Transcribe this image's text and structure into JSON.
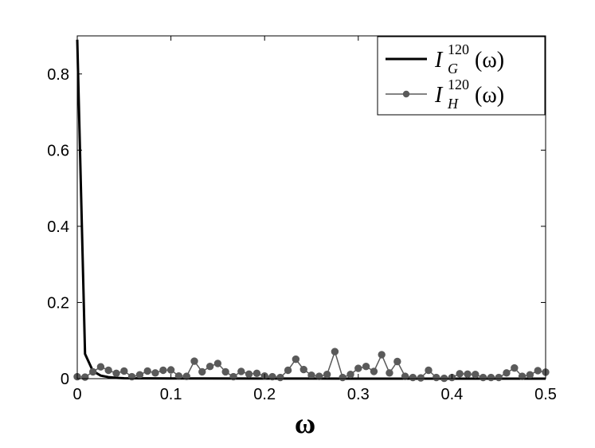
{
  "chart_data": {
    "type": "line",
    "xlabel": "ω",
    "ylabel": "",
    "xlim": [
      0,
      0.5
    ],
    "ylim": [
      0,
      0.9
    ],
    "xticks": [
      "0",
      "0.1",
      "0.2",
      "0.3",
      "0.4",
      "0.5"
    ],
    "yticks": [
      "0",
      "0.2",
      "0.4",
      "0.6",
      "0.8"
    ],
    "grid": false,
    "legend_position": "top-right",
    "series": [
      {
        "name": "I_G^120(ω)",
        "legend": {
          "base": "I",
          "sub": "G",
          "sup": "120",
          "arg": "(ω)"
        },
        "color": "#000000",
        "marker": "none",
        "x": [
          0.0,
          0.0083,
          0.0167,
          0.025,
          0.0333,
          0.0417,
          0.05,
          0.1,
          0.2,
          0.3,
          0.4,
          0.5
        ],
        "y": [
          0.89,
          0.065,
          0.02,
          0.008,
          0.004,
          0.002,
          0.001,
          0.0005,
          0.0002,
          0.0001,
          0.0001,
          0.0
        ]
      },
      {
        "name": "I_H^120(ω)",
        "legend": {
          "base": "I",
          "sub": "H",
          "sup": "120",
          "arg": "(ω)"
        },
        "color": "#5a5a5a",
        "marker": "circle",
        "x": [
          0.0,
          0.0083,
          0.0167,
          0.025,
          0.0333,
          0.0417,
          0.05,
          0.0583,
          0.0667,
          0.075,
          0.0833,
          0.0917,
          0.1,
          0.1083,
          0.1167,
          0.125,
          0.1333,
          0.1417,
          0.15,
          0.1583,
          0.1667,
          0.175,
          0.1833,
          0.1917,
          0.2,
          0.2083,
          0.2167,
          0.225,
          0.2333,
          0.2417,
          0.25,
          0.2583,
          0.2667,
          0.275,
          0.2833,
          0.2917,
          0.3,
          0.3083,
          0.3167,
          0.325,
          0.3333,
          0.3417,
          0.35,
          0.3583,
          0.3667,
          0.375,
          0.3833,
          0.3917,
          0.4,
          0.4083,
          0.4167,
          0.425,
          0.4333,
          0.4417,
          0.45,
          0.4583,
          0.4667,
          0.475,
          0.4833,
          0.4917,
          0.5
        ],
        "y": [
          0.005,
          0.004,
          0.018,
          0.031,
          0.022,
          0.014,
          0.02,
          0.005,
          0.01,
          0.02,
          0.015,
          0.022,
          0.023,
          0.007,
          0.006,
          0.046,
          0.018,
          0.032,
          0.04,
          0.018,
          0.005,
          0.019,
          0.012,
          0.014,
          0.007,
          0.005,
          0.003,
          0.022,
          0.051,
          0.024,
          0.009,
          0.006,
          0.011,
          0.071,
          0.003,
          0.011,
          0.027,
          0.032,
          0.019,
          0.063,
          0.015,
          0.045,
          0.006,
          0.003,
          0.002,
          0.022,
          0.003,
          0.001,
          0.003,
          0.013,
          0.012,
          0.011,
          0.003,
          0.003,
          0.003,
          0.015,
          0.028,
          0.006,
          0.01,
          0.021,
          0.017
        ]
      }
    ]
  }
}
